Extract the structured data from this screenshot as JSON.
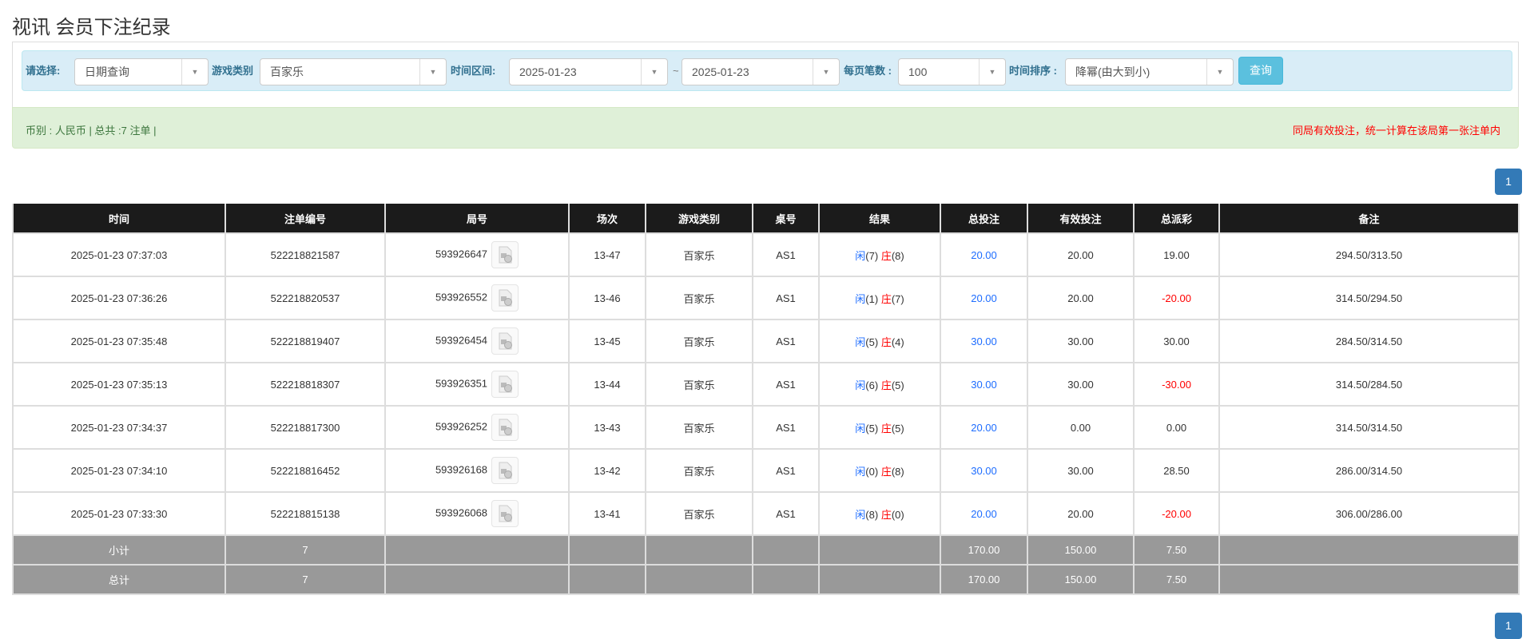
{
  "title": "视讯 会员下注纪录",
  "filters": {
    "select_label": "请选择:",
    "select_value": "日期查询",
    "game_label": "游戏类别",
    "game_value": "百家乐",
    "range_label": "时间区间:",
    "date_from": "2025-01-23",
    "tilde": "~",
    "date_to": "2025-01-23",
    "per_page_label": "每页笔数 :",
    "per_page_value": "100",
    "sort_label": "时间排序 :",
    "sort_value": "降幂(由大到小)",
    "query_button": "查询"
  },
  "summary": {
    "left": "币别 : 人民币 | 总共 :7 注单 |",
    "right": "同局有效投注，统一计算在该局第一张注单内"
  },
  "pagination": {
    "page": "1"
  },
  "colors": {
    "blue": "#1e6dff",
    "red": "#ff0000",
    "header": "#1b1b1b",
    "sum": "#999999"
  },
  "table": {
    "headers": [
      "时间",
      "注单编号",
      "局号",
      "场次",
      "游戏类别",
      "桌号",
      "结果",
      "总投注",
      "有效投注",
      "总派彩",
      "备注"
    ],
    "rows": [
      {
        "time": "2025-01-23 07:37:03",
        "bet_no": "522218821587",
        "round": "593926647",
        "session": "13-47",
        "game": "百家乐",
        "table": "AS1",
        "player": "闲",
        "player_pts": "(7)",
        "banker": "庄",
        "banker_pts": "(8)",
        "total": "20.00",
        "valid": "20.00",
        "payout": "19.00",
        "payout_neg": false,
        "note": "294.50/313.50"
      },
      {
        "time": "2025-01-23 07:36:26",
        "bet_no": "522218820537",
        "round": "593926552",
        "session": "13-46",
        "game": "百家乐",
        "table": "AS1",
        "player": "闲",
        "player_pts": "(1)",
        "banker": "庄",
        "banker_pts": "(7)",
        "total": "20.00",
        "valid": "20.00",
        "payout": "-20.00",
        "payout_neg": true,
        "note": "314.50/294.50"
      },
      {
        "time": "2025-01-23 07:35:48",
        "bet_no": "522218819407",
        "round": "593926454",
        "session": "13-45",
        "game": "百家乐",
        "table": "AS1",
        "player": "闲",
        "player_pts": "(5)",
        "banker": "庄",
        "banker_pts": "(4)",
        "total": "30.00",
        "valid": "30.00",
        "payout": "30.00",
        "payout_neg": false,
        "note": "284.50/314.50"
      },
      {
        "time": "2025-01-23 07:35:13",
        "bet_no": "522218818307",
        "round": "593926351",
        "session": "13-44",
        "game": "百家乐",
        "table": "AS1",
        "player": "闲",
        "player_pts": "(6)",
        "banker": "庄",
        "banker_pts": "(5)",
        "total": "30.00",
        "valid": "30.00",
        "payout": "-30.00",
        "payout_neg": true,
        "note": "314.50/284.50"
      },
      {
        "time": "2025-01-23 07:34:37",
        "bet_no": "522218817300",
        "round": "593926252",
        "session": "13-43",
        "game": "百家乐",
        "table": "AS1",
        "player": "闲",
        "player_pts": "(5)",
        "banker": "庄",
        "banker_pts": "(5)",
        "total": "20.00",
        "valid": "0.00",
        "payout": "0.00",
        "payout_neg": false,
        "note": "314.50/314.50"
      },
      {
        "time": "2025-01-23 07:34:10",
        "bet_no": "522218816452",
        "round": "593926168",
        "session": "13-42",
        "game": "百家乐",
        "table": "AS1",
        "player": "闲",
        "player_pts": "(0)",
        "banker": "庄",
        "banker_pts": "(8)",
        "total": "30.00",
        "valid": "30.00",
        "payout": "28.50",
        "payout_neg": false,
        "note": "286.00/314.50"
      },
      {
        "time": "2025-01-23 07:33:30",
        "bet_no": "522218815138",
        "round": "593926068",
        "session": "13-41",
        "game": "百家乐",
        "table": "AS1",
        "player": "闲",
        "player_pts": "(8)",
        "banker": "庄",
        "banker_pts": "(0)",
        "total": "20.00",
        "valid": "20.00",
        "payout": "-20.00",
        "payout_neg": true,
        "note": "306.00/286.00"
      }
    ],
    "subtotal": {
      "label": "小计",
      "count": "7",
      "total": "170.00",
      "valid": "150.00",
      "payout": "7.50"
    },
    "grand_total": {
      "label": "总计",
      "count": "7",
      "total": "170.00",
      "valid": "150.00",
      "payout": "7.50"
    }
  }
}
